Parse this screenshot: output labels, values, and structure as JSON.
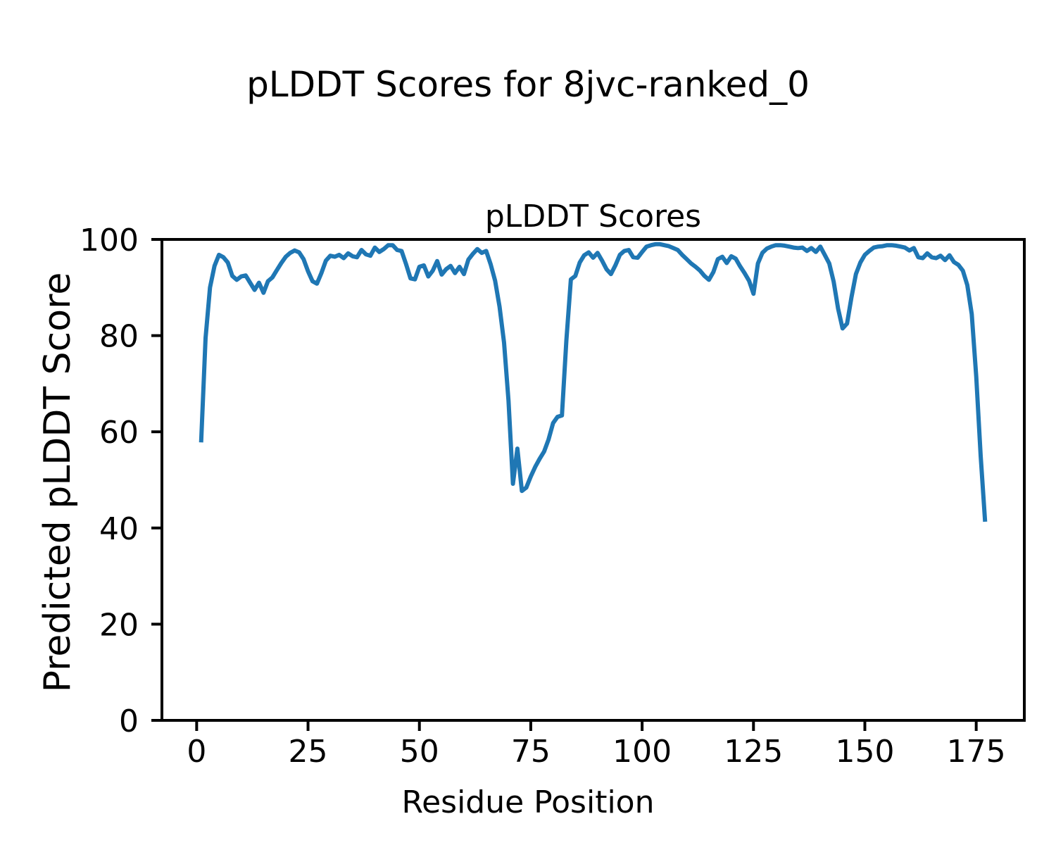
{
  "figure": {
    "suptitle": "pLDDT Scores for 8jvc-ranked_0",
    "background": "#ffffff"
  },
  "chart_data": {
    "type": "line",
    "title": "pLDDT Scores",
    "xlabel": "Residue Position",
    "ylabel": "Predicted pLDDT Score",
    "line_color": "#1f77b4",
    "axis_color": "#000000",
    "grid": false,
    "legend_position": "none",
    "xticks": [
      0,
      25,
      50,
      75,
      100,
      125,
      150,
      175
    ],
    "yticks": [
      0,
      20,
      40,
      60,
      80,
      100
    ],
    "xlim": [
      -7.8,
      185.8
    ],
    "ylim": [
      0,
      100
    ],
    "series": [
      {
        "name": "pLDDT",
        "x_start": 1,
        "values": [
          57.8,
          79.5,
          90.0,
          94.5,
          96.8,
          96.3,
          95.2,
          92.4,
          91.6,
          92.3,
          92.5,
          91.0,
          89.5,
          91.0,
          88.9,
          91.3,
          92.1,
          93.6,
          95.1,
          96.4,
          97.2,
          97.7,
          97.3,
          95.9,
          93.4,
          91.3,
          90.8,
          93.0,
          95.6,
          96.6,
          96.4,
          96.8,
          96.1,
          97.1,
          96.5,
          96.3,
          97.8,
          96.9,
          96.6,
          98.3,
          97.4,
          98.0,
          98.8,
          98.8,
          97.8,
          97.6,
          94.9,
          91.9,
          91.7,
          94.3,
          94.6,
          92.3,
          93.5,
          95.5,
          92.7,
          93.8,
          94.5,
          93.0,
          94.3,
          92.8,
          95.8,
          97.0,
          98.0,
          97.2,
          97.6,
          94.8,
          91.4,
          86.0,
          78.5,
          66.5,
          49.2,
          56.5,
          47.7,
          48.4,
          50.7,
          52.7,
          54.4,
          55.9,
          58.4,
          61.8,
          63.1,
          63.4,
          79.0,
          91.7,
          92.4,
          95.2,
          96.7,
          97.3,
          96.2,
          97.2,
          95.6,
          93.8,
          92.8,
          94.6,
          96.8,
          97.6,
          97.8,
          96.3,
          96.2,
          97.4,
          98.5,
          98.8,
          99.0,
          99.0,
          98.8,
          98.6,
          98.2,
          97.8,
          96.8,
          95.9,
          95.0,
          94.3,
          93.5,
          92.4,
          91.6,
          93.2,
          95.9,
          96.4,
          95.1,
          96.5,
          96.0,
          94.4,
          93.0,
          91.4,
          88.7,
          95.0,
          97.2,
          98.1,
          98.5,
          98.8,
          98.8,
          98.7,
          98.5,
          98.3,
          98.2,
          98.3,
          97.6,
          98.2,
          97.4,
          98.5,
          96.8,
          95.0,
          91.2,
          85.6,
          81.5,
          82.5,
          88.0,
          92.8,
          95.2,
          96.8,
          97.6,
          98.3,
          98.5,
          98.6,
          98.8,
          98.8,
          98.7,
          98.5,
          98.3,
          97.7,
          98.2,
          96.3,
          96.1,
          97.1,
          96.3,
          96.1,
          96.6,
          95.7,
          96.7,
          95.3,
          94.7,
          93.5,
          90.5,
          84.5,
          71.5,
          55.0,
          41.3
        ]
      }
    ]
  }
}
